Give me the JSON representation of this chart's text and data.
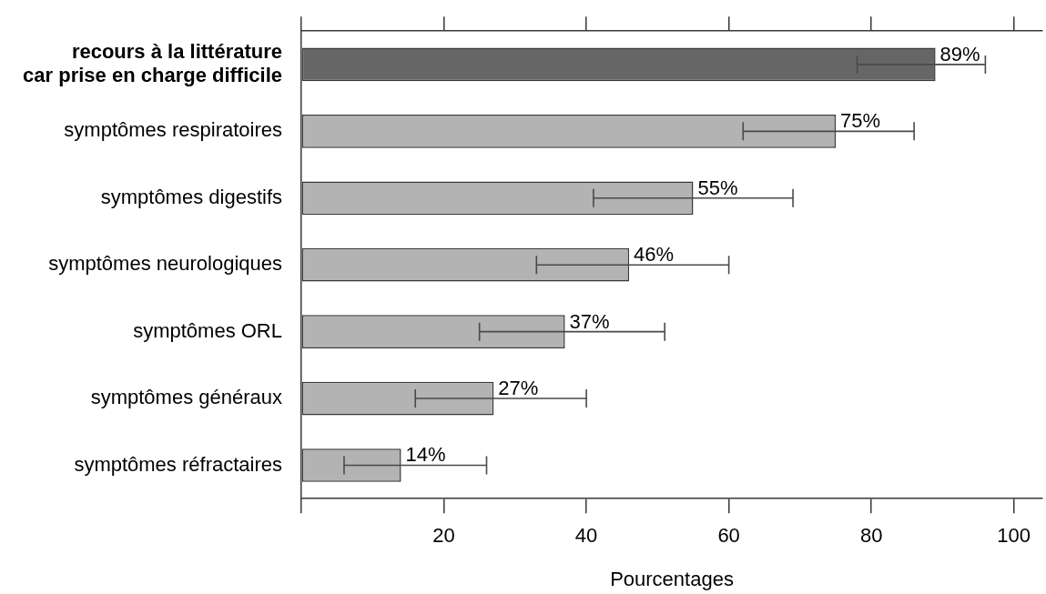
{
  "chart_data": {
    "type": "bar",
    "orientation": "horizontal",
    "xlabel": "Pourcentages",
    "categories": [
      "recours à la littérature\ncar prise en charge difficile",
      "symptômes respiratoires",
      "symptômes digestifs",
      "symptômes neurologiques",
      "symptômes ORL",
      "symptômes généraux",
      "symptômes réfractaires"
    ],
    "values": [
      89,
      75,
      55,
      46,
      37,
      27,
      14
    ],
    "colors": [
      "#666666",
      "#b3b3b3",
      "#b3b3b3",
      "#b3b3b3",
      "#b3b3b3",
      "#b3b3b3",
      "#b3b3b3"
    ],
    "errors": [
      [
        78,
        96
      ],
      [
        62,
        86
      ],
      [
        41,
        69
      ],
      [
        33,
        60
      ],
      [
        25,
        51
      ],
      [
        16,
        40
      ],
      [
        6,
        26
      ]
    ],
    "value_labels": [
      "89%",
      "75%",
      "55%",
      "46%",
      "37%",
      "27%",
      "14%"
    ],
    "xlim": [
      0,
      104
    ],
    "xticks": [
      {
        "value": 0,
        "label": null
      },
      20,
      40,
      60,
      80,
      100
    ]
  }
}
